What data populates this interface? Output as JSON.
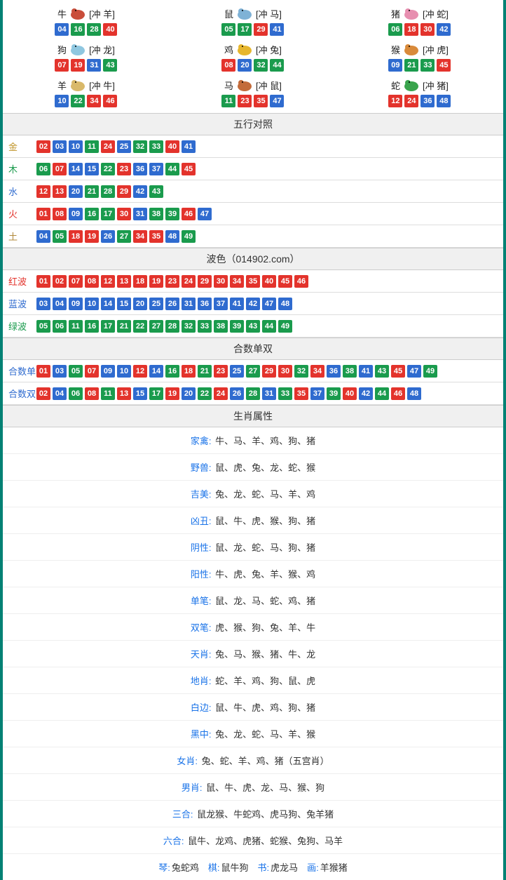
{
  "colors": {
    "red": "#e3332c",
    "blue": "#2f6bcf",
    "green": "#1a9b4d",
    "grey_border": "#ddd",
    "head_bg": "#f0f0f0",
    "frame": "#028174"
  },
  "ball_color_map": {
    "01": "red",
    "02": "red",
    "07": "red",
    "08": "red",
    "12": "red",
    "13": "red",
    "18": "red",
    "19": "red",
    "23": "red",
    "24": "red",
    "29": "red",
    "30": "red",
    "34": "red",
    "35": "red",
    "40": "red",
    "45": "red",
    "46": "red",
    "03": "blue",
    "04": "blue",
    "09": "blue",
    "10": "blue",
    "14": "blue",
    "15": "blue",
    "20": "blue",
    "25": "blue",
    "26": "blue",
    "31": "blue",
    "36": "blue",
    "37": "blue",
    "41": "blue",
    "42": "blue",
    "47": "blue",
    "48": "blue",
    "05": "green",
    "06": "green",
    "11": "green",
    "16": "green",
    "17": "green",
    "21": "green",
    "22": "green",
    "27": "green",
    "28": "green",
    "32": "green",
    "33": "green",
    "38": "green",
    "39": "green",
    "43": "green",
    "44": "green",
    "49": "green"
  },
  "zodiac": [
    {
      "name": "牛",
      "conflict": "[冲 羊]",
      "nums": [
        "04",
        "16",
        "28",
        "40"
      ],
      "icon_fill": "#c94d3a"
    },
    {
      "name": "鼠",
      "conflict": "[冲 马]",
      "nums": [
        "05",
        "17",
        "29",
        "41"
      ],
      "icon_fill": "#7fb2d6"
    },
    {
      "name": "猪",
      "conflict": "[冲 蛇]",
      "nums": [
        "06",
        "18",
        "30",
        "42"
      ],
      "icon_fill": "#e78fb0"
    },
    {
      "name": "狗",
      "conflict": "[冲 龙]",
      "nums": [
        "07",
        "19",
        "31",
        "43"
      ],
      "icon_fill": "#8fc7e0"
    },
    {
      "name": "鸡",
      "conflict": "[冲 兔]",
      "nums": [
        "08",
        "20",
        "32",
        "44"
      ],
      "icon_fill": "#e6b62e"
    },
    {
      "name": "猴",
      "conflict": "[冲 虎]",
      "nums": [
        "09",
        "21",
        "33",
        "45"
      ],
      "icon_fill": "#d98a3a"
    },
    {
      "name": "羊",
      "conflict": "[冲 牛]",
      "nums": [
        "10",
        "22",
        "34",
        "46"
      ],
      "icon_fill": "#d9b96a"
    },
    {
      "name": "马",
      "conflict": "[冲 鼠]",
      "nums": [
        "11",
        "23",
        "35",
        "47"
      ],
      "icon_fill": "#c36b3a"
    },
    {
      "name": "蛇",
      "conflict": "[冲 猪]",
      "nums": [
        "12",
        "24",
        "36",
        "48"
      ],
      "icon_fill": "#3aa44d"
    }
  ],
  "sections": {
    "wuxing": {
      "title": "五行对照",
      "rows": [
        {
          "label": "金",
          "label_color": "#c1952a",
          "nums": [
            "02",
            "03",
            "10",
            "11",
            "24",
            "25",
            "32",
            "33",
            "40",
            "41"
          ]
        },
        {
          "label": "木",
          "label_color": "#1a9b4d",
          "nums": [
            "06",
            "07",
            "14",
            "15",
            "22",
            "23",
            "36",
            "37",
            "44",
            "45"
          ]
        },
        {
          "label": "水",
          "label_color": "#2f6bcf",
          "nums": [
            "12",
            "13",
            "20",
            "21",
            "28",
            "29",
            "42",
            "43"
          ]
        },
        {
          "label": "火",
          "label_color": "#e3332c",
          "nums": [
            "01",
            "08",
            "09",
            "16",
            "17",
            "30",
            "31",
            "38",
            "39",
            "46",
            "47"
          ]
        },
        {
          "label": "土",
          "label_color": "#b0883a",
          "nums": [
            "04",
            "05",
            "18",
            "19",
            "26",
            "27",
            "34",
            "35",
            "48",
            "49"
          ]
        }
      ]
    },
    "bose": {
      "title": "波色（014902.com）",
      "rows": [
        {
          "label": "红波",
          "label_color": "#e3332c",
          "nums": [
            "01",
            "02",
            "07",
            "08",
            "12",
            "13",
            "18",
            "19",
            "23",
            "24",
            "29",
            "30",
            "34",
            "35",
            "40",
            "45",
            "46"
          ]
        },
        {
          "label": "蓝波",
          "label_color": "#2f6bcf",
          "nums": [
            "03",
            "04",
            "09",
            "10",
            "14",
            "15",
            "20",
            "25",
            "26",
            "31",
            "36",
            "37",
            "41",
            "42",
            "47",
            "48"
          ]
        },
        {
          "label": "绿波",
          "label_color": "#1a9b4d",
          "nums": [
            "05",
            "06",
            "11",
            "16",
            "17",
            "21",
            "22",
            "27",
            "28",
            "32",
            "33",
            "38",
            "39",
            "43",
            "44",
            "49"
          ]
        }
      ]
    },
    "heshu": {
      "title": "合数单双",
      "rows": [
        {
          "label": "合数单",
          "label_color": "#2f6bcf",
          "nums": [
            "01",
            "03",
            "05",
            "07",
            "09",
            "10",
            "12",
            "14",
            "16",
            "18",
            "21",
            "23",
            "25",
            "27",
            "29",
            "30",
            "32",
            "34",
            "36",
            "38",
            "41",
            "43",
            "45",
            "47",
            "49"
          ]
        },
        {
          "label": "合数双",
          "label_color": "#2f6bcf",
          "nums": [
            "02",
            "04",
            "06",
            "08",
            "11",
            "13",
            "15",
            "17",
            "19",
            "20",
            "22",
            "24",
            "26",
            "28",
            "31",
            "33",
            "35",
            "37",
            "39",
            "40",
            "42",
            "44",
            "46",
            "48"
          ]
        }
      ]
    },
    "shuxing": {
      "title": "生肖属性",
      "rows": [
        {
          "label": "家禽:",
          "value": "牛、马、羊、鸡、狗、猪"
        },
        {
          "label": "野兽:",
          "value": "鼠、虎、兔、龙、蛇、猴"
        },
        {
          "label": "吉美:",
          "value": "兔、龙、蛇、马、羊、鸡"
        },
        {
          "label": "凶丑:",
          "value": "鼠、牛、虎、猴、狗、猪"
        },
        {
          "label": "阴性:",
          "value": "鼠、龙、蛇、马、狗、猪"
        },
        {
          "label": "阳性:",
          "value": "牛、虎、兔、羊、猴、鸡"
        },
        {
          "label": "单笔:",
          "value": "鼠、龙、马、蛇、鸡、猪"
        },
        {
          "label": "双笔:",
          "value": "虎、猴、狗、兔、羊、牛"
        },
        {
          "label": "天肖:",
          "value": "兔、马、猴、猪、牛、龙"
        },
        {
          "label": "地肖:",
          "value": "蛇、羊、鸡、狗、鼠、虎"
        },
        {
          "label": "白边:",
          "value": "鼠、牛、虎、鸡、狗、猪"
        },
        {
          "label": "黑中:",
          "value": "兔、龙、蛇、马、羊、猴"
        },
        {
          "label": "女肖:",
          "value": "兔、蛇、羊、鸡、猪（五宫肖）"
        },
        {
          "label": "男肖:",
          "value": "鼠、牛、虎、龙、马、猴、狗"
        },
        {
          "label": "三合:",
          "value": "鼠龙猴、牛蛇鸡、虎马狗、兔羊猪"
        },
        {
          "label": "六合:",
          "value": "鼠牛、龙鸡、虎猪、蛇猴、兔狗、马羊"
        }
      ],
      "footer": [
        {
          "label": "琴:",
          "value": "兔蛇鸡"
        },
        {
          "label": "棋:",
          "value": "鼠牛狗"
        },
        {
          "label": "书:",
          "value": "虎龙马"
        },
        {
          "label": "画:",
          "value": "羊猴猪"
        }
      ]
    }
  }
}
